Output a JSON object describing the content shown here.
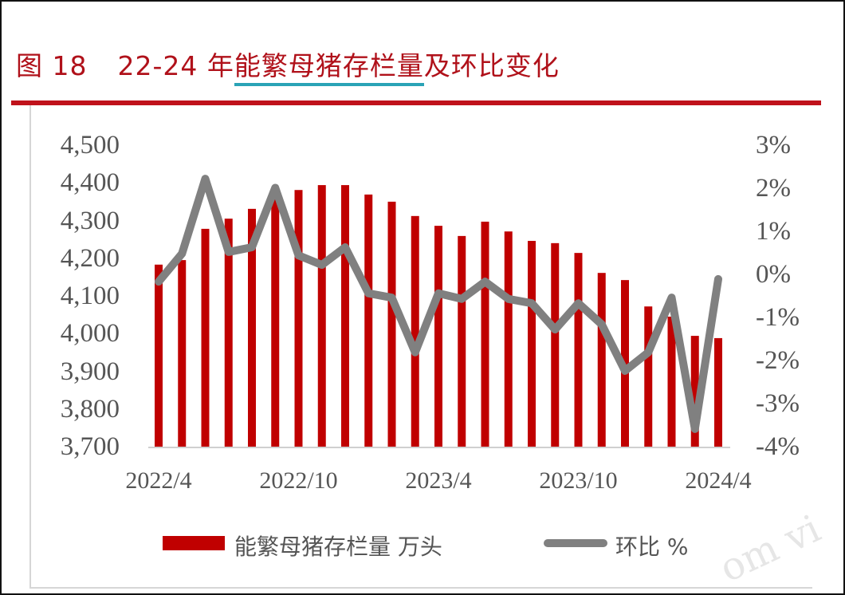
{
  "figure": {
    "label": "图 18",
    "title_prefix": "22-24 年",
    "title_highlight": "能繁母猪存栏量",
    "title_suffix": "及环比变化",
    "accent_color": "#b0111a",
    "underline_color": "#2aa3b6"
  },
  "legend": {
    "bar_label": "能繁母猪存栏量 万头",
    "line_label": "环比 %"
  },
  "watermark": "om vi",
  "chart_data": {
    "type": "bar+line",
    "title": "22-24 年能繁母猪存栏量及环比变化",
    "categories": [
      "2022/4",
      "2022/5",
      "2022/6",
      "2022/7",
      "2022/8",
      "2022/9",
      "2022/10",
      "2022/11",
      "2022/12",
      "2023/1",
      "2023/2",
      "2023/3",
      "2023/4",
      "2023/5",
      "2023/6",
      "2023/7",
      "2023/8",
      "2023/9",
      "2023/10",
      "2023/11",
      "2023/12",
      "2024/1",
      "2024/2",
      "2024/3",
      "2024/4"
    ],
    "x_tick_labels": [
      "2022/4",
      "2022/10",
      "2023/4",
      "2023/10",
      "2024/4"
    ],
    "series": [
      {
        "name": "能繁母猪存栏量 万头",
        "type": "bar",
        "axis": "left",
        "color": "#c00000",
        "values": [
          4183,
          4195,
          4278,
          4305,
          4331,
          4358,
          4381,
          4394,
          4394,
          4369,
          4350,
          4312,
          4286,
          4259,
          4297,
          4271,
          4246,
          4240,
          4214,
          4161,
          4142,
          4072,
          4045,
          3994,
          3988
        ]
      },
      {
        "name": "环比 %",
        "type": "line",
        "axis": "right",
        "color": "#808080",
        "values": [
          -0.17,
          0.48,
          2.22,
          0.52,
          0.63,
          2.01,
          0.44,
          0.22,
          0.63,
          -0.44,
          -0.54,
          -1.81,
          -0.44,
          -0.57,
          -0.17,
          -0.57,
          -0.67,
          -1.28,
          -0.67,
          -1.16,
          -2.24,
          -1.81,
          -0.54,
          -3.59,
          -0.11
        ]
      }
    ],
    "y_left": {
      "ticks": [
        "4,500",
        "4,400",
        "4,300",
        "4,200",
        "4,100",
        "4,000",
        "3,900",
        "3,800",
        "3,700"
      ],
      "range": [
        3700,
        4500
      ]
    },
    "y_right": {
      "ticks": [
        "3%",
        "2%",
        "1%",
        "0%",
        "-1%",
        "-2%",
        "-3%",
        "-4%"
      ],
      "range": [
        -4,
        3
      ]
    },
    "grid": false,
    "legend_position": "bottom"
  }
}
